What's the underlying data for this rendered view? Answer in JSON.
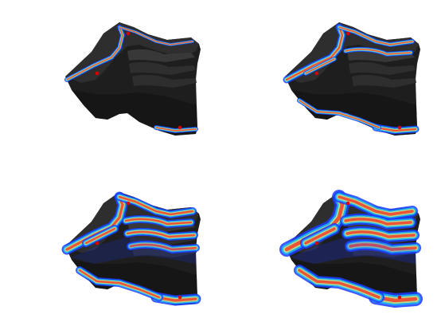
{
  "figure": {
    "layout": "2x2 grid",
    "background": "#ffffff",
    "panels": [
      {
        "id": "top-left",
        "coverage": "low"
      },
      {
        "id": "top-right",
        "coverage": "medium"
      },
      {
        "id": "bottom-left",
        "coverage": "high"
      },
      {
        "id": "bottom-right",
        "coverage": "very-high"
      }
    ],
    "colors": {
      "surface_dark": "#1e1e1e",
      "surface_mid": "#2f2f2f",
      "surface_light": "#3a3a3a",
      "heat_blue": "#1c3cff",
      "heat_cyan": "#19d6ff",
      "heat_yellow": "#fff05a",
      "heat_red": "#ff2a1a",
      "marker_red": "#e00000"
    }
  }
}
